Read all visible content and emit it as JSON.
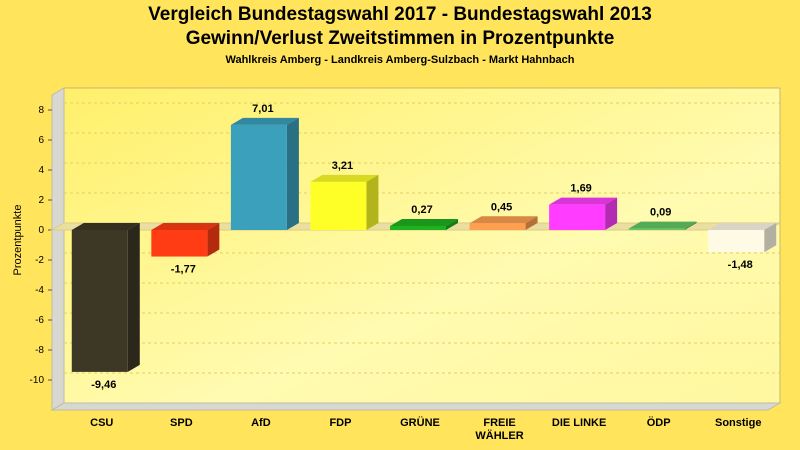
{
  "chart_data": {
    "type": "bar",
    "title": "Vergleich Bundestagswahl 2017 - Bundestagswahl 2013",
    "subtitle": "Gewinn/Verlust Zweitstimmen in Prozentpunkte",
    "subtitle2": "Wahlkreis Amberg - Landkreis Amberg-Sulzbach - Markt Hahnbach",
    "ylabel": "Prozentpunkte",
    "ylim": [
      -12,
      9
    ],
    "yticks": [
      -10,
      -8,
      -6,
      -4,
      -2,
      0,
      2,
      4,
      6,
      8
    ],
    "categories": [
      "CSU",
      "SPD",
      "AfD",
      "FDP",
      "GRÜNE",
      "FREIE WÄHLER",
      "DIE LINKE",
      "ÖDP",
      "Sonstige"
    ],
    "values": [
      -9.46,
      -1.77,
      7.01,
      3.21,
      0.27,
      0.45,
      1.69,
      0.09,
      -1.48
    ],
    "value_labels": [
      "-9,46",
      "-1,77",
      "7,01",
      "3,21",
      "0,27",
      "0,45",
      "1,69",
      "0,09",
      "-1,48"
    ],
    "colors": [
      "#3d3826",
      "#ff3c14",
      "#3aa0bc",
      "#ffff28",
      "#1fb21f",
      "#ffa050",
      "#ff3cff",
      "#64c864",
      "#fffae6"
    ],
    "grid": true,
    "legend": "none"
  }
}
